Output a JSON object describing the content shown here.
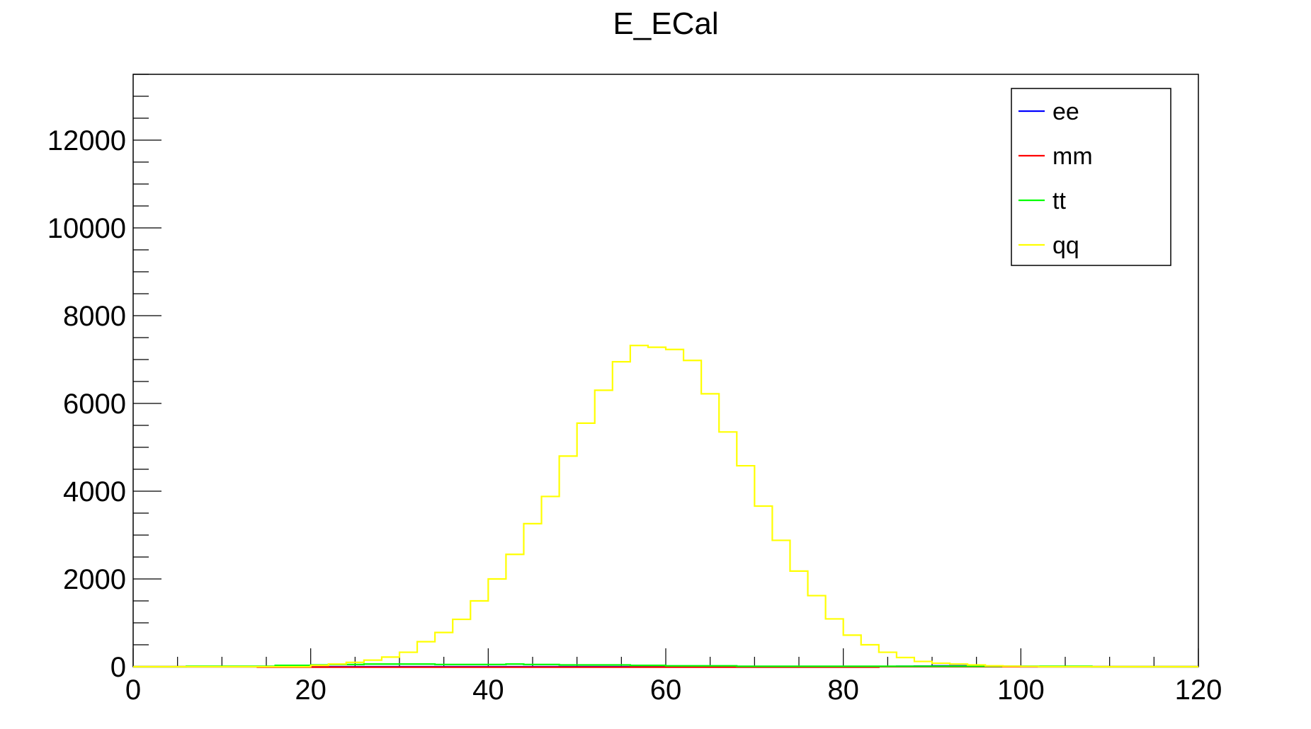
{
  "chart_data": {
    "type": "line",
    "title": "E_ECal",
    "xlabel": "",
    "ylabel": "",
    "xlim": [
      0,
      120
    ],
    "ylim": [
      0,
      13500
    ],
    "x_ticks": [
      0,
      20,
      40,
      60,
      80,
      100,
      120
    ],
    "y_ticks": [
      0,
      2000,
      4000,
      6000,
      8000,
      10000,
      12000
    ],
    "bin_width": 2,
    "grid": false,
    "legend_position": "top-right",
    "series": [
      {
        "name": "ee",
        "color": "#0000ff",
        "values": [
          0,
          0,
          0,
          0,
          0,
          0,
          0,
          0,
          0,
          0,
          0,
          0,
          0,
          0,
          0,
          0,
          0,
          0,
          0,
          0,
          0,
          0,
          0,
          0,
          0,
          0,
          0,
          0,
          0,
          0,
          0,
          0,
          0,
          0,
          0,
          0,
          0,
          0,
          0,
          0,
          0,
          0,
          5,
          10,
          15,
          20,
          20,
          15,
          10,
          5,
          0,
          0,
          0,
          0,
          0,
          0,
          0,
          0,
          0,
          0
        ]
      },
      {
        "name": "mm",
        "color": "#ff0000",
        "values": [
          0,
          0,
          0,
          0,
          0,
          0,
          0,
          -10,
          -10,
          -10,
          -10,
          -10,
          -10,
          -10,
          -10,
          -10,
          -10,
          -10,
          -10,
          -10,
          -10,
          -10,
          -10,
          -10,
          -10,
          -10,
          -10,
          -10,
          -10,
          -10,
          -10,
          -10,
          -10,
          -10,
          -10,
          -10,
          -10,
          -10,
          -10,
          -10,
          -10,
          -10,
          0,
          0,
          0,
          0,
          0,
          0,
          0,
          0,
          0,
          0,
          0,
          0,
          0,
          0,
          0,
          0,
          0,
          0
        ]
      },
      {
        "name": "tt",
        "color": "#00ff00",
        "values": [
          0,
          0,
          0,
          10,
          10,
          10,
          10,
          10,
          30,
          30,
          40,
          50,
          50,
          60,
          60,
          60,
          60,
          50,
          50,
          50,
          50,
          60,
          50,
          50,
          40,
          40,
          40,
          40,
          30,
          30,
          20,
          20,
          20,
          20,
          10,
          10,
          10,
          10,
          10,
          10,
          10,
          10,
          10,
          10,
          10,
          10,
          10,
          10,
          10,
          10,
          10,
          10,
          10,
          10,
          0,
          0,
          0,
          0,
          0,
          0
        ]
      },
      {
        "name": "qq",
        "color": "#ffff00",
        "values": [
          0,
          0,
          0,
          0,
          0,
          0,
          0,
          0,
          0,
          0,
          30,
          60,
          100,
          150,
          220,
          330,
          570,
          780,
          1080,
          1500,
          2000,
          2560,
          3260,
          3880,
          4800,
          5550,
          6300,
          6950,
          7320,
          7280,
          7230,
          6980,
          6220,
          5350,
          4580,
          3660,
          2880,
          2180,
          1620,
          1090,
          720,
          500,
          330,
          210,
          120,
          80,
          60,
          40,
          20,
          10,
          5,
          0,
          0,
          0,
          0,
          0,
          0,
          0,
          0,
          0
        ]
      }
    ]
  }
}
